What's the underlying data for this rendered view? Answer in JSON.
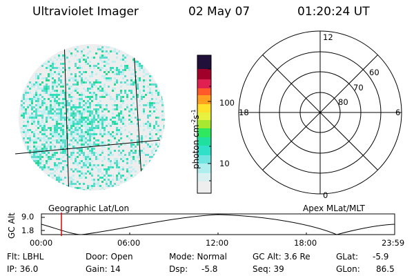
{
  "header": {
    "instrument": "Ultraviolet Imager",
    "date": "02 May 07",
    "time": "01:20:24 UT"
  },
  "colorbar": {
    "label": "photon cm^-2 s^-1",
    "ticks": [
      "100",
      "10"
    ]
  },
  "image_panel": {
    "caption": "Geographic Lat/Lon",
    "colors": [
      "#e8e8e8",
      "#bfeff0",
      "#60dccf",
      "#2fe0b8",
      "#28d890"
    ]
  },
  "polar_panel": {
    "caption": "Apex MLat/MLT",
    "mlt_labels": {
      "top": "12",
      "left": "18",
      "right": "6",
      "bottom": "0"
    },
    "lat_labels": [
      "60",
      "70",
      "80"
    ]
  },
  "altitude_plot": {
    "ylabel": "GC Alt",
    "yticks": [
      "9.0",
      "1.8"
    ],
    "xticks": [
      "00:00",
      "06:00",
      "12:00",
      "18:00",
      "23:59"
    ],
    "marker_color": "#e00000"
  },
  "status": {
    "flt": "Flt: LBHL",
    "ip": "IP: 36.0",
    "door": "Door: Open",
    "gain": "Gain: 14",
    "mode": "Mode: Normal",
    "dsp_label": "Dsp:",
    "dsp_value": "-5.8",
    "gc_alt": "GC Alt: 3.6 Re",
    "seq": "Seq: 39",
    "glat_label": "GLat:",
    "glat_value": "-5.9",
    "glon_label": "GLon:",
    "glon_value": "86.5"
  }
}
